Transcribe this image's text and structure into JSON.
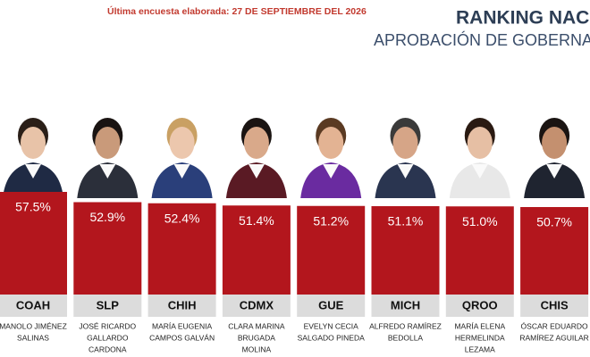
{
  "chart_data": {
    "type": "bar",
    "subtitle": "Última encuesta elaborada: 27 DE SEPTIEMBRE DEL 2026",
    "title": "RANKING NAC",
    "title2": "APROBACIÓN DE GOBERNA",
    "categories": [
      "COAH",
      "SLP",
      "CHIH",
      "CDMX",
      "GUE",
      "MICH",
      "QROO",
      "CHIS"
    ],
    "values": [
      57.5,
      52.9,
      52.4,
      51.4,
      51.2,
      51.1,
      51.0,
      50.7
    ],
    "value_labels": [
      "57.5%",
      "52.9%",
      "52.4%",
      "51.4%",
      "51.2%",
      "51.1%",
      "51.0%",
      "50.7%"
    ],
    "names": [
      [
        "MANOLO JIMÉNEZ",
        "SALINAS"
      ],
      [
        "JOSÉ RICARDO",
        "GALLARDO",
        "CARDONA"
      ],
      [
        "MARÍA EUGENIA",
        "CAMPOS GALVÁN"
      ],
      [
        "CLARA MARINA",
        "BRUGADA",
        "MOLINA"
      ],
      [
        "EVELYN CECIA",
        "SALGADO PINEDA"
      ],
      [
        "ALFREDO RAMÍREZ",
        "BEDOLLA"
      ],
      [
        "MARÍA ELENA",
        "HERMELINDA",
        "LEZAMA"
      ],
      [
        "ÓSCAR EDUARDO",
        "RAMÍREZ AGUILAR"
      ]
    ],
    "color": "#b3161d"
  }
}
